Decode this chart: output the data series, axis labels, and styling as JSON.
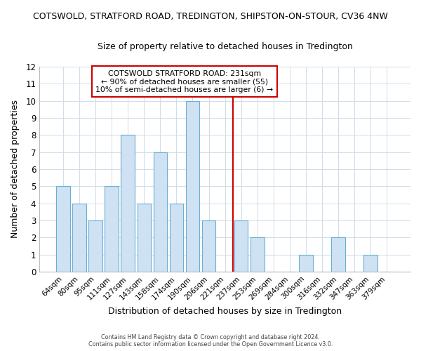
{
  "title_line1": "COTSWOLD, STRATFORD ROAD, TREDINGTON, SHIPSTON-ON-STOUR, CV36 4NW",
  "title_line2": "Size of property relative to detached houses in Tredington",
  "xlabel": "Distribution of detached houses by size in Tredington",
  "ylabel": "Number of detached properties",
  "categories": [
    "64sqm",
    "80sqm",
    "95sqm",
    "111sqm",
    "127sqm",
    "143sqm",
    "158sqm",
    "174sqm",
    "190sqm",
    "206sqm",
    "221sqm",
    "237sqm",
    "253sqm",
    "269sqm",
    "284sqm",
    "300sqm",
    "316sqm",
    "332sqm",
    "347sqm",
    "363sqm",
    "379sqm"
  ],
  "values": [
    5,
    4,
    3,
    5,
    8,
    4,
    7,
    4,
    10,
    3,
    0,
    3,
    2,
    0,
    0,
    1,
    0,
    2,
    0,
    1,
    0
  ],
  "bar_color": "#cfe2f3",
  "bar_edge_color": "#6aaed6",
  "grid_color": "#d0dce8",
  "vline_color": "#cc0000",
  "vline_index": 11,
  "annotation_text": "COTSWOLD STRATFORD ROAD: 231sqm\n← 90% of detached houses are smaller (55)\n10% of semi-detached houses are larger (6) →",
  "annotation_box_edge": "#cc0000",
  "ylim": [
    0,
    12
  ],
  "yticks": [
    0,
    1,
    2,
    3,
    4,
    5,
    6,
    7,
    8,
    9,
    10,
    11,
    12
  ],
  "footer_line1": "Contains HM Land Registry data © Crown copyright and database right 2024.",
  "footer_line2": "Contains public sector information licensed under the Open Government Licence v3.0.",
  "bg_color": "#ffffff",
  "fig_width": 6.0,
  "fig_height": 5.0
}
